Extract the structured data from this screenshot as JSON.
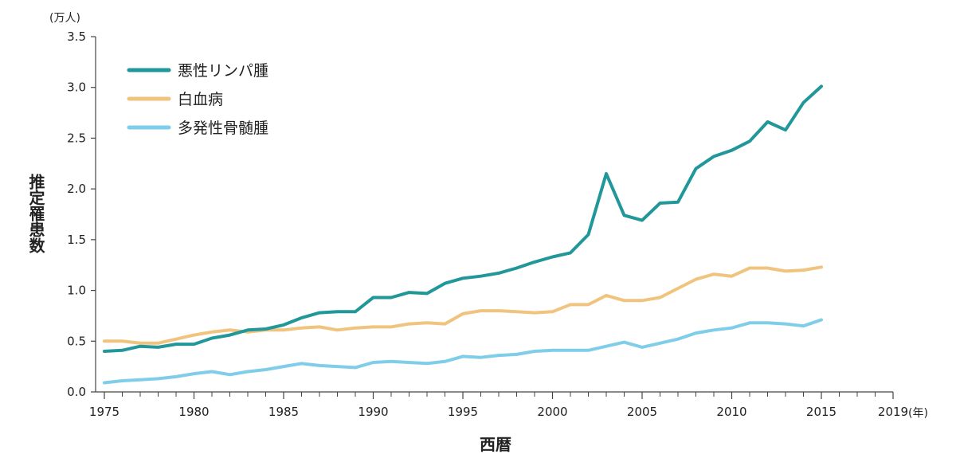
{
  "chart_data": {
    "type": "line",
    "y_unit_label": "(万人)",
    "x_unit_label": "(年)",
    "xlabel": "西暦",
    "ylabel": "推定罹患数",
    "xlim": [
      1975,
      2019
    ],
    "ylim": [
      0,
      3.5
    ],
    "grid": false,
    "legend_position": "top-left",
    "x_ticks": [
      1975,
      1980,
      1985,
      1990,
      1995,
      2000,
      2005,
      2010,
      2015,
      2019
    ],
    "y_ticks": [
      "0.0",
      "0.5",
      "1.0",
      "1.5",
      "2.0",
      "2.5",
      "3.0",
      "3.5"
    ],
    "x": [
      1975,
      1976,
      1977,
      1978,
      1979,
      1980,
      1981,
      1982,
      1983,
      1984,
      1985,
      1986,
      1987,
      1988,
      1989,
      1990,
      1991,
      1992,
      1993,
      1994,
      1995,
      1996,
      1997,
      1998,
      1999,
      2000,
      2001,
      2002,
      2003,
      2004,
      2005,
      2006,
      2007,
      2008,
      2009,
      2010,
      2011,
      2012,
      2013,
      2014,
      2015
    ],
    "series": [
      {
        "name": "悪性リンパ腫",
        "color": "#21979a",
        "values": [
          0.4,
          0.41,
          0.45,
          0.44,
          0.47,
          0.47,
          0.53,
          0.56,
          0.61,
          0.62,
          0.66,
          0.73,
          0.78,
          0.79,
          0.79,
          0.93,
          0.93,
          0.98,
          0.97,
          1.07,
          1.12,
          1.14,
          1.17,
          1.22,
          1.28,
          1.33,
          1.37,
          1.55,
          2.15,
          1.74,
          1.69,
          1.86,
          1.87,
          2.2,
          2.32,
          2.38,
          2.47,
          2.66,
          2.58,
          2.85,
          3.01
        ]
      },
      {
        "name": "白血病",
        "color": "#f0c47e",
        "values": [
          0.5,
          0.5,
          0.48,
          0.48,
          0.52,
          0.56,
          0.59,
          0.61,
          0.59,
          0.61,
          0.61,
          0.63,
          0.64,
          0.61,
          0.63,
          0.64,
          0.64,
          0.67,
          0.68,
          0.67,
          0.77,
          0.8,
          0.8,
          0.79,
          0.78,
          0.79,
          0.86,
          0.86,
          0.95,
          0.9,
          0.9,
          0.93,
          1.02,
          1.11,
          1.16,
          1.14,
          1.22,
          1.22,
          1.19,
          1.2,
          1.23
        ]
      },
      {
        "name": "多発性骨髄腫",
        "color": "#7fcde9",
        "values": [
          0.09,
          0.11,
          0.12,
          0.13,
          0.15,
          0.18,
          0.2,
          0.17,
          0.2,
          0.22,
          0.25,
          0.28,
          0.26,
          0.25,
          0.24,
          0.29,
          0.3,
          0.29,
          0.28,
          0.3,
          0.35,
          0.34,
          0.36,
          0.37,
          0.4,
          0.41,
          0.41,
          0.41,
          0.45,
          0.49,
          0.44,
          0.48,
          0.52,
          0.58,
          0.61,
          0.63,
          0.68,
          0.68,
          0.67,
          0.65,
          0.71
        ]
      }
    ]
  }
}
